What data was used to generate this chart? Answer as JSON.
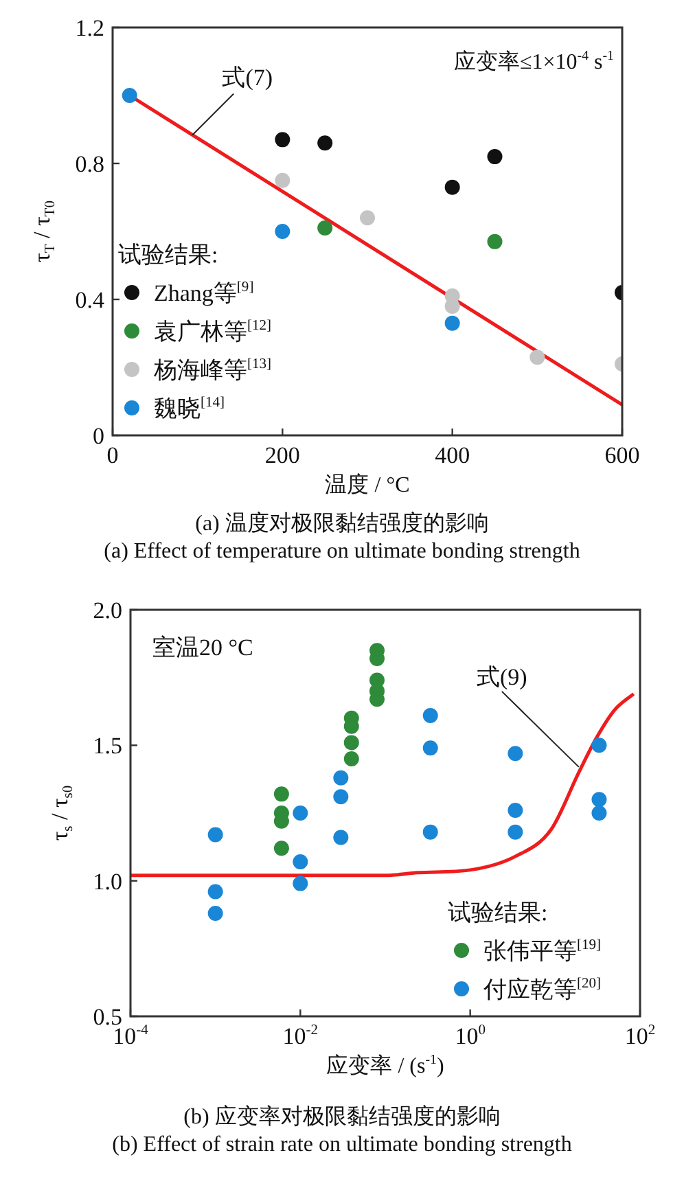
{
  "chart_data": [
    {
      "type": "scatter",
      "title": "(a) 温度对极限黏结强度的影响",
      "subtitle": "(a) Effect of temperature on ultimate bonding strength",
      "xlabel": "温度 / °C",
      "ylabel": "τ$_{T}$ / τ$_{T0}$",
      "xlim": [
        0,
        600
      ],
      "xticks": [
        0,
        200,
        400,
        600
      ],
      "ylim": [
        0,
        1.2
      ],
      "yticks": [
        0,
        0.4,
        0.8,
        1.2
      ],
      "legend": "bottom left",
      "legend_title": "试验结果:",
      "marker": "circle",
      "annotations": [
        "应变率≤1×10$^{-4}$ s$^{-1}$",
        {
          "text": "式(7)",
          "x": 94,
          "y": 0.884
        }
      ],
      "series": [
        {
          "name": "Zhang等$^{[9]}$",
          "color": "#111111",
          "x": [
            200,
            250,
            400,
            450,
            600
          ],
          "values": [
            0.87,
            0.86,
            0.73,
            0.82,
            0.42
          ]
        },
        {
          "name": "袁广林等$^{[12]}$",
          "color": "#2e8b3a",
          "x": [
            250,
            450
          ],
          "values": [
            0.61,
            0.57
          ]
        },
        {
          "name": "杨海峰等$^{[13]}$",
          "color": "#c4c4c4",
          "x": [
            200,
            300,
            400,
            400,
            500,
            600
          ],
          "values": [
            0.75,
            0.64,
            0.41,
            0.38,
            0.23,
            0.21
          ]
        },
        {
          "name": "魏晓$^{[14]}$",
          "color": "#1a86d6",
          "x": [
            20,
            200,
            400
          ],
          "values": [
            1.0,
            0.6,
            0.33
          ]
        },
        {
          "type": "line",
          "color": "#ee1c1c",
          "line_style": "solid",
          "marker": "none",
          "x": [
            20,
            600
          ],
          "values": [
            1.0,
            0.09
          ]
        }
      ]
    },
    {
      "type": "scatter",
      "title": "(b) 应变率对极限黏结强度的影响",
      "subtitle": "(b) Effect of strain rate on ultimate bonding strength",
      "xlabel": "应变率 / (s$^{-1}$)",
      "ylabel": "τ$_{s}$ / τ$_{s0}$",
      "log": "x",
      "xlim": [
        0.0001,
        100
      ],
      "xticks": [
        {
          "value": 0.0001,
          "label": "10$^{-4}$"
        },
        {
          "value": 0.01,
          "label": "10$^{-2}$"
        },
        {
          "value": 1,
          "label": "10$^{0}$"
        },
        {
          "value": 100,
          "label": "10$^{2}$"
        }
      ],
      "ylim": [
        0.5,
        2.0
      ],
      "yticks": [
        0.5,
        {
          "value": 1,
          "label": "1.0"
        },
        1.5,
        {
          "value": 2,
          "label": "2.0"
        }
      ],
      "legend": "bottom right",
      "legend_title": "试验结果:",
      "marker": "circle",
      "annotations": [
        "室温20 °C",
        {
          "text": "式(9)",
          "x": 19,
          "y": 1.42
        }
      ],
      "series": [
        {
          "name": "张伟平等$^{[19]}$",
          "color": "#2e8b3a",
          "x": [
            0.006,
            0.006,
            0.006,
            0.006,
            0.04,
            0.04,
            0.04,
            0.04,
            0.08,
            0.08,
            0.08,
            0.08,
            0.08
          ],
          "values": [
            1.32,
            1.25,
            1.22,
            1.12,
            1.6,
            1.57,
            1.51,
            1.45,
            1.85,
            1.82,
            1.74,
            1.7,
            1.67
          ]
        },
        {
          "name": "付应乾等$^{[20]}$",
          "color": "#1a86d6",
          "x": [
            0.001,
            0.001,
            0.001,
            0.01,
            0.01,
            0.01,
            0.03,
            0.03,
            0.03,
            0.34,
            0.34,
            0.34,
            3.4,
            3.4,
            3.4,
            33,
            33,
            33
          ],
          "values": [
            1.17,
            0.96,
            0.88,
            1.25,
            1.07,
            0.99,
            1.38,
            1.31,
            1.16,
            1.61,
            1.49,
            1.18,
            1.47,
            1.26,
            1.18,
            1.5,
            1.3,
            1.25
          ]
        },
        {
          "type": "line",
          "color": "#ee1c1c",
          "line_style": "solid",
          "marker": "none",
          "x": [
            0.0001,
            0.01,
            0.1,
            0.24,
            1,
            3.4,
            9,
            19,
            31,
            50,
            84
          ],
          "values": [
            1.02,
            1.02,
            1.02,
            1.03,
            1.04,
            1.09,
            1.19,
            1.4,
            1.53,
            1.63,
            1.69
          ]
        }
      ]
    }
  ]
}
